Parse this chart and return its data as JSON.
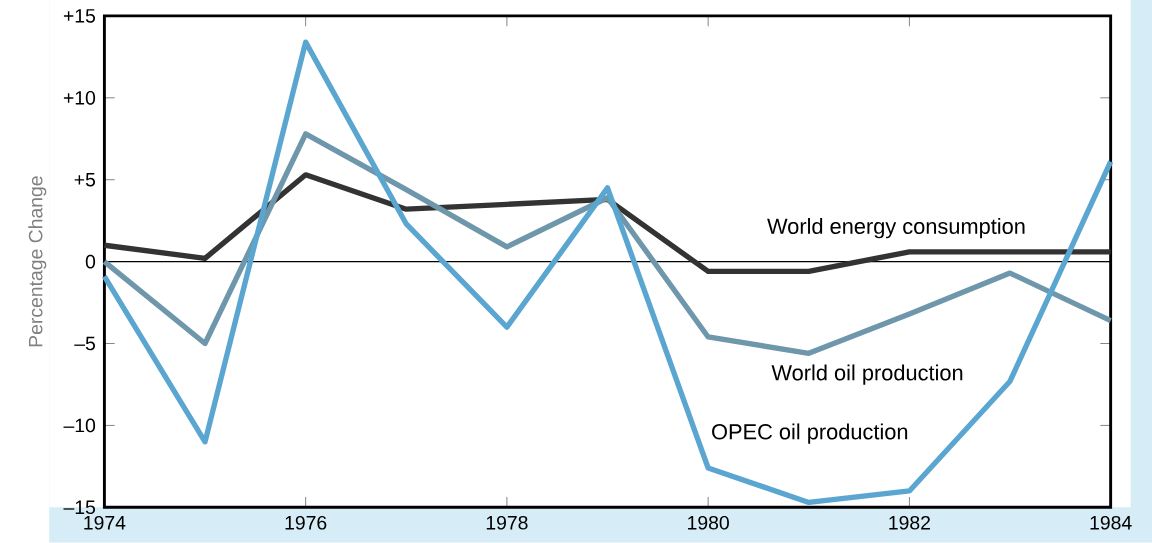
{
  "chart_data": {
    "type": "line",
    "ylabel": "Percentage Change",
    "x": [
      1974,
      1975,
      1976,
      1977,
      1978,
      1979,
      1980,
      1981,
      1982,
      1983,
      1984
    ],
    "series": [
      {
        "name": "World energy consumption",
        "color": "#333333",
        "values": [
          1.0,
          0.2,
          5.3,
          3.2,
          3.5,
          3.8,
          -0.6,
          -0.6,
          0.6,
          0.6,
          0.6
        ]
      },
      {
        "name": "World oil production",
        "color": "#6f97ab",
        "values": [
          0,
          -5,
          7.8,
          4.4,
          0.9,
          3.9,
          -4.6,
          -5.6,
          -3.2,
          -0.7,
          -3.6
        ]
      },
      {
        "name": "OPEC oil production",
        "color": "#5aa6d0",
        "values": [
          -0.9,
          -11,
          13.4,
          2.3,
          -4,
          4.5,
          -12.6,
          -14.7,
          -14,
          -7.3,
          6.1
        ]
      }
    ],
    "xlim": [
      1974,
      1984
    ],
    "xticks": [
      1974,
      1976,
      1978,
      1980,
      1982,
      1984
    ],
    "ylim": [
      -15,
      15
    ],
    "yticks": [
      {
        "value": 15,
        "label": "+15"
      },
      {
        "value": 10,
        "label": "+10"
      },
      {
        "value": 5,
        "label": "+5"
      },
      0,
      {
        "value": -5,
        "label": "–5"
      },
      {
        "value": -10,
        "label": "–10"
      },
      {
        "value": -15,
        "label": "–15"
      }
    ],
    "ref_lines": [
      {
        "axis": "y",
        "value": 0,
        "color": "#000000"
      }
    ],
    "grid": false,
    "legend": false,
    "marker": "none",
    "line_style": "solid"
  }
}
